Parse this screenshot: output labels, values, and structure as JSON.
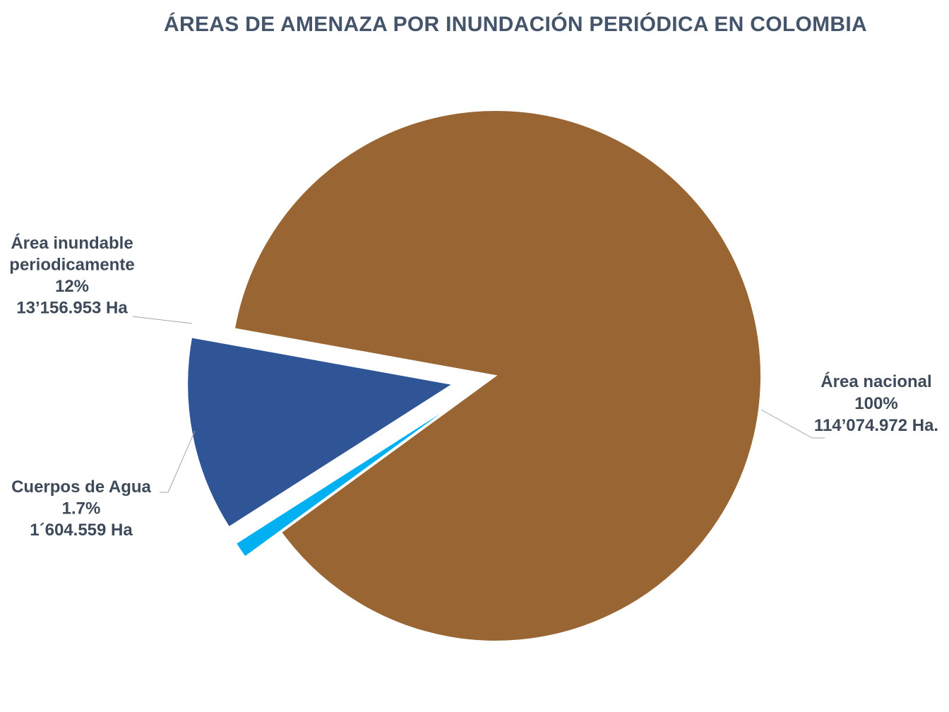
{
  "chart_data": {
    "type": "pie",
    "title": "ÁREAS DE AMENAZA POR INUNDACIÓN PERIÓDICA EN COLOMBIA",
    "slices": [
      {
        "name": "Área inundable periodicamente",
        "label_lines": [
          "Área inundable",
          "periodicamente",
          "12%",
          "13’156.953 Ha"
        ],
        "percent": 12,
        "value_ha": 13156953,
        "color": "#2f5597",
        "exploded": true
      },
      {
        "name": "Cuerpos de Agua",
        "label_lines": [
          "Cuerpos de Agua",
          "1.7%",
          "1´604.559 Ha"
        ],
        "percent": 1.7,
        "value_ha": 1604559,
        "color": "#00b0f0",
        "exploded": true
      },
      {
        "name": "Área nacional",
        "label_lines": [
          "Área nacional",
          "100%",
          "114’074.972 Ha."
        ],
        "percent": 100,
        "value_ha": 114074972,
        "color": "#996633",
        "exploded": false
      }
    ],
    "legend": "none"
  }
}
